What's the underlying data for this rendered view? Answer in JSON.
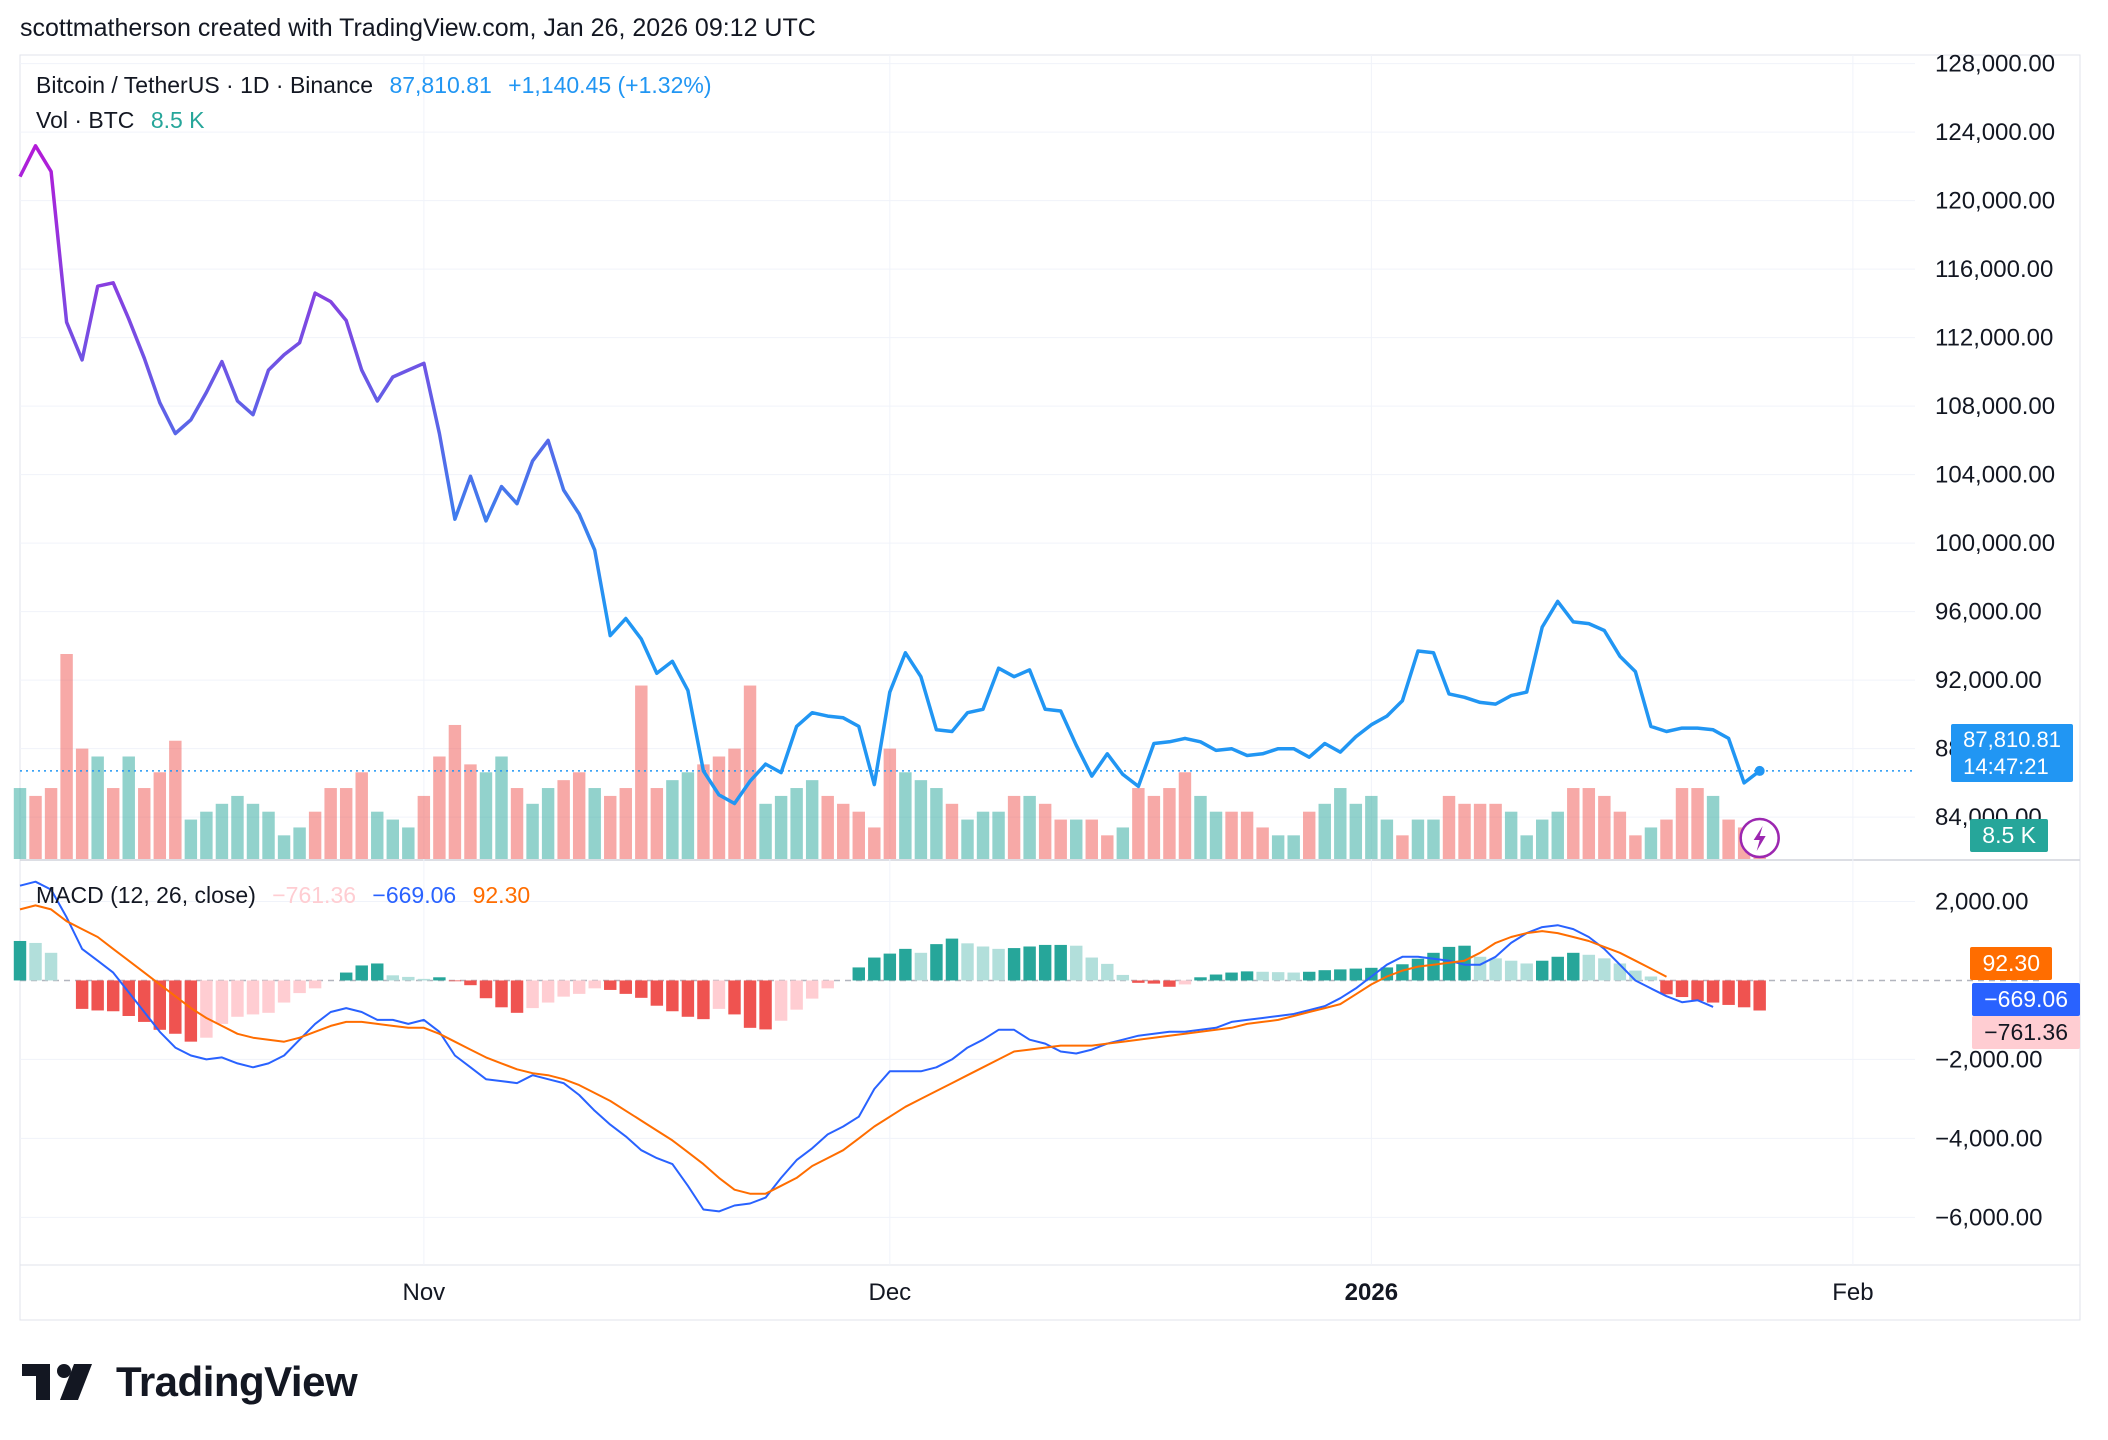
{
  "credit": "scottmatherson created with TradingView.com, Jan 26, 2026 09:12 UTC",
  "logo": {
    "text": "TradingView"
  },
  "legend": {
    "symbol": "Bitcoin / TetherUS · 1D · Binance",
    "last": "87,810.81",
    "change": "+1,140.45 (+1.32%)",
    "vol_label": "Vol · BTC",
    "vol_value": "8.5 K",
    "macd_label": "MACD (12, 26, close)",
    "macd_hist": "−761.36",
    "macd_line": "−669.06",
    "macd_signal": "92.30"
  },
  "price_tag": {
    "price": "87,810.81",
    "countdown": "14:47:21"
  },
  "vol_tag": "8.5 K",
  "macd_tags": {
    "signal": "92.30",
    "macd": "−669.06",
    "hist": "−761.36"
  },
  "colors": {
    "up": "#26a69a",
    "down": "#ef5350",
    "up_light": "#b2dfdb",
    "down_light": "#ffcdd2",
    "macd_line": "#2962ff",
    "signal_line": "#ff6d00",
    "price_line_start": "#b21bd8",
    "price_line_end": "#2196f3"
  },
  "chart_data": [
    {
      "type": "line",
      "title": "Bitcoin / TetherUS · 1D · Binance",
      "y_ticks": [
        "84,000.00",
        "88,000.00",
        "92,000.00",
        "96,000.00",
        "100,000.00",
        "104,000.00",
        "108,000.00",
        "112,000.00",
        "116,000.00",
        "120,000.00",
        "124,000.00",
        "128,000.00"
      ],
      "y_tick_values": [
        84000,
        88000,
        92000,
        96000,
        100000,
        104000,
        108000,
        112000,
        116000,
        120000,
        124000,
        128000
      ],
      "x_ticks": [
        {
          "label": "Nov",
          "index": 26
        },
        {
          "label": "Dec",
          "index": 56
        },
        {
          "label": "2026",
          "index": 87
        },
        {
          "label": "Feb",
          "index": 118
        }
      ],
      "ylim": [
        81500,
        128500
      ],
      "x_range": [
        0,
        122
      ],
      "start_date": "2025-10-06",
      "close": [
        121400,
        123200,
        121700,
        112900,
        110700,
        115000,
        115200,
        113100,
        110800,
        108200,
        106400,
        107200,
        108800,
        110600,
        108300,
        107500,
        110100,
        111000,
        111700,
        114600,
        114100,
        113000,
        110100,
        108300,
        109700,
        110100,
        110500,
        106400,
        101400,
        103900,
        101300,
        103300,
        102300,
        104800,
        106000,
        103100,
        101700,
        99600,
        94600,
        95600,
        94400,
        92400,
        93100,
        91400,
        86700,
        85300,
        84800,
        86100,
        87100,
        86600,
        89300,
        90100,
        89900,
        89800,
        89300,
        85900,
        91300,
        93600,
        92200,
        89100,
        89000,
        90100,
        90300,
        92700,
        92200,
        92600,
        90300,
        90200,
        88200,
        86400,
        87700,
        86500,
        85800,
        88300,
        88400,
        88600,
        88400,
        87900,
        88000,
        87600,
        87700,
        88000,
        88000,
        87500,
        88300,
        87800,
        88700,
        89400,
        89900,
        90800,
        93700,
        93600,
        91200,
        91000,
        90700,
        90600,
        91100,
        91300,
        95100,
        96600,
        95400,
        95300,
        94900,
        93400,
        92500,
        89300,
        89000,
        89200,
        89200,
        89100,
        88600,
        86000,
        86700
      ]
    },
    {
      "type": "bar",
      "title": "Vol · BTC",
      "values": [
        9,
        8,
        9,
        26,
        14,
        13,
        9,
        13,
        9,
        11,
        15,
        5,
        6,
        7,
        8,
        7,
        6,
        3,
        4,
        6,
        9,
        9,
        11,
        6,
        5,
        4,
        8,
        13,
        17,
        12,
        11,
        13,
        9,
        7,
        9,
        10,
        11,
        9,
        8,
        9,
        22,
        9,
        10,
        11,
        12,
        13,
        14,
        22,
        7,
        8,
        9,
        10,
        8,
        7,
        6,
        4,
        14,
        11,
        10,
        9,
        7,
        5,
        6,
        6,
        8,
        8,
        7,
        5,
        5,
        5,
        3,
        4,
        9,
        8,
        9,
        11,
        8,
        6,
        6,
        6,
        4,
        3,
        3,
        6,
        7,
        9,
        7,
        8,
        5,
        3,
        5,
        5,
        8,
        7,
        7,
        7,
        6,
        3,
        5,
        6,
        9,
        9,
        8,
        6,
        3,
        4,
        5,
        9,
        9,
        8,
        5,
        4,
        4
      ],
      "up": [
        true,
        false,
        false,
        false,
        false,
        true,
        false,
        true,
        false,
        false,
        false,
        true,
        true,
        true,
        true,
        true,
        true,
        true,
        true,
        false,
        false,
        false,
        false,
        true,
        true,
        true,
        false,
        false,
        false,
        false,
        true,
        true,
        false,
        true,
        true,
        false,
        false,
        true,
        false,
        false,
        false,
        false,
        true,
        true,
        false,
        false,
        false,
        false,
        true,
        true,
        true,
        true,
        false,
        false,
        false,
        false,
        false,
        true,
        true,
        true,
        false,
        true,
        true,
        true,
        false,
        true,
        false,
        false,
        true,
        false,
        false,
        true,
        false,
        false,
        false,
        false,
        true,
        true,
        false,
        false,
        false,
        true,
        true,
        false,
        true,
        true,
        true,
        true,
        true,
        false,
        true,
        true,
        false,
        false,
        false,
        false,
        true,
        true,
        true,
        true,
        false,
        false,
        false,
        false,
        false,
        true,
        false,
        false,
        false,
        true,
        false,
        false,
        false
      ]
    },
    {
      "type": "bar",
      "title": "MACD (12, 26, close)",
      "y_ticks": [
        "−6,000.00",
        "−4,000.00",
        "−2,000.00",
        "2,000.00"
      ],
      "y_tick_values": [
        -6000,
        -4000,
        -2000,
        2000
      ],
      "ylim": [
        -6700,
        3000
      ],
      "histogram": [
        1000,
        950,
        700,
        0,
        -720,
        -760,
        -780,
        -900,
        -1050,
        -1250,
        -1350,
        -1550,
        -1450,
        -1100,
        -920,
        -860,
        -820,
        -560,
        -320,
        -200,
        0,
        200,
        380,
        430,
        130,
        90,
        40,
        80,
        -20,
        -120,
        -450,
        -680,
        -820,
        -700,
        -560,
        -410,
        -340,
        -200,
        -240,
        -340,
        -440,
        -640,
        -780,
        -920,
        -980,
        -720,
        -860,
        -1200,
        -1240,
        -1020,
        -740,
        -460,
        -200,
        0,
        330,
        580,
        680,
        800,
        700,
        920,
        1060,
        940,
        860,
        800,
        820,
        860,
        900,
        900,
        880,
        580,
        420,
        140,
        -60,
        -80,
        -160,
        -100,
        80,
        150,
        200,
        230,
        220,
        210,
        200,
        220,
        260,
        280,
        300,
        320,
        330,
        410,
        550,
        700,
        850,
        880,
        600,
        560,
        500,
        430,
        500,
        600,
        700,
        650,
        560,
        430,
        250,
        100,
        -350,
        -420,
        -520,
        -560,
        -620,
        -680,
        -761
      ]
    },
    {
      "type": "line",
      "title": "MACD lines",
      "series": [
        {
          "name": "MACD",
          "values": [
            2400,
            2500,
            2300,
            1600,
            800,
            500,
            200,
            -300,
            -800,
            -1300,
            -1700,
            -1900,
            -2000,
            -1950,
            -2100,
            -2200,
            -2100,
            -1900,
            -1500,
            -1100,
            -800,
            -700,
            -800,
            -1000,
            -1000,
            -1100,
            -1000,
            -1300,
            -1900,
            -2200,
            -2500,
            -2550,
            -2600,
            -2400,
            -2500,
            -2600,
            -2900,
            -3300,
            -3650,
            -3950,
            -4300,
            -4500,
            -4650,
            -5200,
            -5800,
            -5850,
            -5700,
            -5650,
            -5500,
            -5000,
            -4550,
            -4250,
            -3900,
            -3700,
            -3450,
            -2750,
            -2300,
            -2300,
            -2300,
            -2200,
            -2000,
            -1700,
            -1500,
            -1250,
            -1250,
            -1500,
            -1600,
            -1800,
            -1850,
            -1750,
            -1600,
            -1500,
            -1400,
            -1350,
            -1300,
            -1300,
            -1250,
            -1200,
            -1050,
            -1000,
            -950,
            -900,
            -850,
            -750,
            -650,
            -450,
            -200,
            100,
            400,
            600,
            600,
            550,
            500,
            400,
            400,
            600,
            950,
            1200,
            1350,
            1400,
            1300,
            1100,
            800,
            400,
            0,
            -200,
            -400,
            -550,
            -500,
            -669
          ]
        },
        {
          "name": "Signal",
          "values": [
            1800,
            1900,
            1800,
            1500,
            1300,
            1100,
            800,
            500,
            200,
            -100,
            -400,
            -700,
            -950,
            -1150,
            -1350,
            -1450,
            -1500,
            -1550,
            -1450,
            -1300,
            -1150,
            -1050,
            -1050,
            -1100,
            -1150,
            -1200,
            -1200,
            -1350,
            -1550,
            -1750,
            -1950,
            -2100,
            -2250,
            -2350,
            -2400,
            -2500,
            -2650,
            -2850,
            -3050,
            -3300,
            -3550,
            -3800,
            -4050,
            -4350,
            -4650,
            -5000,
            -5300,
            -5400,
            -5400,
            -5200,
            -5000,
            -4700,
            -4500,
            -4300,
            -4000,
            -3700,
            -3450,
            -3200,
            -3000,
            -2800,
            -2600,
            -2400,
            -2200,
            -2000,
            -1800,
            -1750,
            -1700,
            -1650,
            -1650,
            -1650,
            -1600,
            -1550,
            -1500,
            -1450,
            -1400,
            -1350,
            -1300,
            -1250,
            -1200,
            -1100,
            -1050,
            -1000,
            -900,
            -800,
            -700,
            -600,
            -350,
            -100,
            100,
            250,
            350,
            400,
            450,
            500,
            700,
            950,
            1100,
            1200,
            1250,
            1200,
            1100,
            1000,
            850,
            700,
            500,
            300,
            92
          ]
        }
      ]
    }
  ],
  "axis_labels_text": {
    "x": [
      "Nov",
      "Dec",
      "2026",
      "Feb"
    ]
  }
}
